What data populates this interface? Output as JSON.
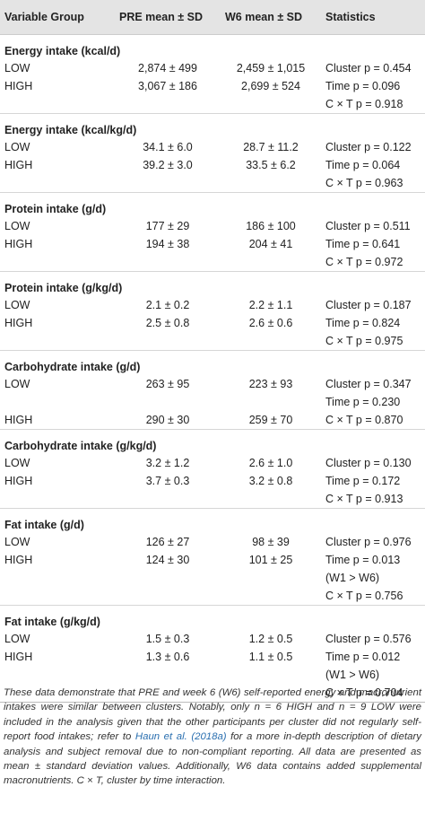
{
  "table": {
    "headers": [
      "Variable Group",
      "PRE mean ± SD",
      "W6 mean ± SD",
      "Statistics"
    ],
    "groups": [
      {
        "title": "Energy intake (kcal/d)",
        "rows": [
          {
            "group": "LOW",
            "pre": "2,874 ± 499",
            "w6": "2,459 ± 1,015",
            "stats": "Cluster p = 0.454"
          },
          {
            "group": "HIGH",
            "pre": "3,067 ± 186",
            "w6": "2,699 ± 524",
            "stats": "Time p = 0.096"
          },
          {
            "stats": "C × T p = 0.918"
          }
        ]
      },
      {
        "title": "Energy intake (kcal/kg/d)",
        "rows": [
          {
            "group": "LOW",
            "pre": "34.1 ± 6.0",
            "w6": "28.7 ± 11.2",
            "stats": "Cluster p = 0.122"
          },
          {
            "group": "HIGH",
            "pre": "39.2 ± 3.0",
            "w6": "33.5 ± 6.2",
            "stats": "Time p = 0.064"
          },
          {
            "stats": "C × T p = 0.963"
          }
        ]
      },
      {
        "title": "Protein intake (g/d)",
        "rows": [
          {
            "group": "LOW",
            "pre": "177 ± 29",
            "w6": "186 ± 100",
            "stats": "Cluster p = 0.511"
          },
          {
            "group": "HIGH",
            "pre": "194 ± 38",
            "w6": "204 ± 41",
            "stats": "Time p = 0.641"
          },
          {
            "stats": "C × T p = 0.972"
          }
        ]
      },
      {
        "title": "Protein intake (g/kg/d)",
        "rows": [
          {
            "group": "LOW",
            "pre": "2.1 ± 0.2",
            "w6": "2.2 ± 1.1",
            "stats": "Cluster p = 0.187"
          },
          {
            "group": "HIGH",
            "pre": "2.5 ± 0.8",
            "w6": "2.6 ± 0.6",
            "stats": "Time p = 0.824"
          },
          {
            "stats": "C × T p = 0.975"
          }
        ]
      },
      {
        "title": "Carbohydrate intake (g/d)",
        "rows": [
          {
            "group": "LOW",
            "pre": "263 ± 95",
            "w6": "223 ± 93",
            "stats": "Cluster p = 0.347"
          },
          {
            "stats": "Time p = 0.230"
          },
          {
            "group": "HIGH",
            "pre": "290 ± 30",
            "w6": "259 ± 70",
            "stats": "C × T p = 0.870"
          }
        ]
      },
      {
        "title": "Carbohydrate intake (g/kg/d)",
        "rows": [
          {
            "group": "LOW",
            "pre": "3.2 ± 1.2",
            "w6": "2.6 ± 1.0",
            "stats": "Cluster p = 0.130"
          },
          {
            "group": "HIGH",
            "pre": "3.7 ± 0.3",
            "w6": "3.2 ± 0.8",
            "stats": "Time p = 0.172"
          },
          {
            "stats": "C × T p = 0.913"
          }
        ]
      },
      {
        "title": "Fat intake (g/d)",
        "rows": [
          {
            "group": "LOW",
            "pre": "126 ± 27",
            "w6": "98 ± 39",
            "stats": "Cluster p = 0.976"
          },
          {
            "group": "HIGH",
            "pre": "124 ± 30",
            "w6": "101 ± 25",
            "stats": "Time p = 0.013"
          },
          {
            "stats": "(W1 > W6)"
          },
          {
            "stats": "C × T p = 0.756"
          }
        ]
      },
      {
        "title": "Fat intake (g/kg/d)",
        "rows": [
          {
            "group": "LOW",
            "pre": "1.5 ± 0.3",
            "w6": "1.2 ± 0.5",
            "stats": "Cluster p = 0.576"
          },
          {
            "group": "HIGH",
            "pre": "1.3 ± 0.6",
            "w6": "1.1 ± 0.5",
            "stats": "Time p = 0.012"
          },
          {
            "stats": "(W1 > W6)"
          },
          {
            "stats": "C × T p = 0.704"
          }
        ]
      }
    ]
  },
  "footnote": {
    "before": "These data demonstrate that PRE and week 6 (W6) self-reported energy and macronutrient intakes were similar between clusters. Notably, only n = 6 HIGH and n = 9 LOW were included in the analysis given that the other participants per cluster did not regularly self-report food intakes; refer to",
    "link": "Haun et al. (2018a)",
    "after": "for a more in-depth description of dietary analysis and subject removal due to non-compliant reporting. All data are presented as mean ± standard deviation values. Additionally, W6 data contains added supplemental macronutrients. C × T, cluster by time interaction."
  }
}
